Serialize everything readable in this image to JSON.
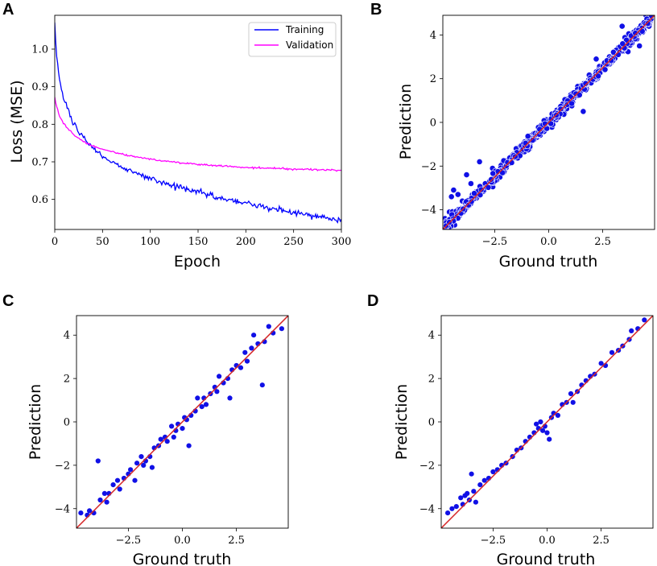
{
  "chart_data": [
    {
      "panel": "A",
      "type": "line",
      "xlabel": "Epoch",
      "ylabel": "Loss (MSE)",
      "xlim": [
        0,
        300
      ],
      "ylim": [
        0.52,
        1.09
      ],
      "xticks": [
        0,
        50,
        100,
        150,
        200,
        250,
        300
      ],
      "yticks": [
        0.6,
        0.7,
        0.8,
        0.9,
        1.0
      ],
      "legend_position": "top-right",
      "series": [
        {
          "name": "Training",
          "color": "#0000ff",
          "x": [
            0,
            2,
            4,
            6,
            8,
            10,
            15,
            20,
            25,
            30,
            35,
            40,
            50,
            60,
            75,
            100,
            125,
            150,
            175,
            200,
            225,
            250,
            275,
            300
          ],
          "y": [
            1.07,
            0.98,
            0.94,
            0.91,
            0.885,
            0.865,
            0.83,
            0.8,
            0.78,
            0.762,
            0.748,
            0.735,
            0.716,
            0.7,
            0.68,
            0.655,
            0.635,
            0.62,
            0.603,
            0.59,
            0.576,
            0.565,
            0.553,
            0.542
          ]
        },
        {
          "name": "Validation",
          "color": "#ff00ff",
          "x": [
            0,
            2,
            4,
            6,
            8,
            10,
            15,
            20,
            25,
            30,
            40,
            50,
            75,
            100,
            125,
            150,
            200,
            250,
            300
          ],
          "y": [
            0.87,
            0.845,
            0.83,
            0.818,
            0.808,
            0.8,
            0.785,
            0.772,
            0.762,
            0.754,
            0.742,
            0.733,
            0.718,
            0.707,
            0.699,
            0.693,
            0.685,
            0.681,
            0.677
          ]
        }
      ]
    },
    {
      "panel": "B",
      "type": "scatter",
      "xlabel": "Ground truth",
      "ylabel": "Prediction",
      "xlim": [
        -4.9,
        4.9
      ],
      "ylim": [
        -4.9,
        4.9
      ],
      "xticks": [
        -2.5,
        0.0,
        2.5
      ],
      "xtick_labels": [
        "−2.5",
        "0.0",
        "2.5"
      ],
      "yticks": [
        -4,
        -2,
        0,
        2,
        4
      ],
      "ytick_labels": [
        "−4",
        "−2",
        "0",
        "2",
        "4"
      ],
      "point_color": "#1010e6",
      "line_color": "#d62728",
      "n_points": 700,
      "points": [
        {
          "x": -4.8,
          "y": -4.4
        },
        {
          "x": -4.6,
          "y": -4.1
        },
        {
          "x": -4.5,
          "y": -3.4
        },
        {
          "x": -4.4,
          "y": -3.1
        },
        {
          "x": -4.2,
          "y": -3.3
        },
        {
          "x": -4.0,
          "y": -3.6
        },
        {
          "x": -3.8,
          "y": -2.4
        },
        {
          "x": -3.6,
          "y": -2.8
        },
        {
          "x": -3.2,
          "y": -1.8
        },
        {
          "x": -2.6,
          "y": -2.1
        },
        {
          "x": 1.6,
          "y": 0.5
        },
        {
          "x": 2.2,
          "y": 2.9
        },
        {
          "x": 3.4,
          "y": 4.4
        },
        {
          "x": 4.2,
          "y": 3.5
        },
        {
          "x": 4.5,
          "y": 4.9
        }
      ]
    },
    {
      "panel": "C",
      "type": "scatter",
      "xlabel": "Ground truth",
      "ylabel": "Prediction",
      "xlim": [
        -4.9,
        4.9
      ],
      "ylim": [
        -4.9,
        4.9
      ],
      "xticks": [
        -2.5,
        0.0,
        2.5
      ],
      "xtick_labels": [
        "−2.5",
        "0.0",
        "2.5"
      ],
      "yticks": [
        -4,
        -2,
        0,
        2,
        4
      ],
      "ytick_labels": [
        "−4",
        "−2",
        "0",
        "2",
        "4"
      ],
      "point_color": "#1010e6",
      "line_color": "#d62728",
      "points": [
        {
          "x": -4.7,
          "y": -4.2
        },
        {
          "x": -4.4,
          "y": -4.3
        },
        {
          "x": -4.3,
          "y": -4.1
        },
        {
          "x": -4.1,
          "y": -4.2
        },
        {
          "x": -3.9,
          "y": -1.8
        },
        {
          "x": -3.8,
          "y": -3.6
        },
        {
          "x": -3.6,
          "y": -3.3
        },
        {
          "x": -3.5,
          "y": -3.7
        },
        {
          "x": -3.4,
          "y": -3.3
        },
        {
          "x": -3.2,
          "y": -2.9
        },
        {
          "x": -3.0,
          "y": -2.7
        },
        {
          "x": -2.9,
          "y": -3.1
        },
        {
          "x": -2.7,
          "y": -2.6
        },
        {
          "x": -2.5,
          "y": -2.4
        },
        {
          "x": -2.4,
          "y": -2.2
        },
        {
          "x": -2.2,
          "y": -2.7
        },
        {
          "x": -2.1,
          "y": -1.9
        },
        {
          "x": -1.9,
          "y": -1.6
        },
        {
          "x": -1.8,
          "y": -2.0
        },
        {
          "x": -1.7,
          "y": -1.8
        },
        {
          "x": -1.5,
          "y": -1.6
        },
        {
          "x": -1.4,
          "y": -2.1
        },
        {
          "x": -1.3,
          "y": -1.2
        },
        {
          "x": -1.1,
          "y": -1.1
        },
        {
          "x": -1.0,
          "y": -0.8
        },
        {
          "x": -0.8,
          "y": -0.7
        },
        {
          "x": -0.7,
          "y": -0.9
        },
        {
          "x": -0.5,
          "y": -0.2
        },
        {
          "x": -0.4,
          "y": -0.7
        },
        {
          "x": -0.3,
          "y": -0.4
        },
        {
          "x": -0.2,
          "y": -0.1
        },
        {
          "x": 0.0,
          "y": -0.3
        },
        {
          "x": 0.1,
          "y": 0.2
        },
        {
          "x": 0.2,
          "y": 0.1
        },
        {
          "x": 0.3,
          "y": -1.1
        },
        {
          "x": 0.4,
          "y": 0.3
        },
        {
          "x": 0.6,
          "y": 0.5
        },
        {
          "x": 0.7,
          "y": 1.1
        },
        {
          "x": 0.9,
          "y": 0.7
        },
        {
          "x": 1.0,
          "y": 1.1
        },
        {
          "x": 1.1,
          "y": 0.8
        },
        {
          "x": 1.3,
          "y": 1.3
        },
        {
          "x": 1.5,
          "y": 1.6
        },
        {
          "x": 1.6,
          "y": 1.4
        },
        {
          "x": 1.7,
          "y": 2.1
        },
        {
          "x": 1.9,
          "y": 1.8
        },
        {
          "x": 2.1,
          "y": 2.0
        },
        {
          "x": 2.2,
          "y": 1.1
        },
        {
          "x": 2.3,
          "y": 2.4
        },
        {
          "x": 2.5,
          "y": 2.6
        },
        {
          "x": 2.7,
          "y": 2.5
        },
        {
          "x": 2.9,
          "y": 3.2
        },
        {
          "x": 3.0,
          "y": 2.8
        },
        {
          "x": 3.2,
          "y": 3.4
        },
        {
          "x": 3.3,
          "y": 4.0
        },
        {
          "x": 3.5,
          "y": 3.6
        },
        {
          "x": 3.7,
          "y": 1.7
        },
        {
          "x": 3.8,
          "y": 3.7
        },
        {
          "x": 4.0,
          "y": 4.4
        },
        {
          "x": 4.2,
          "y": 4.1
        },
        {
          "x": 4.6,
          "y": 4.3
        }
      ]
    },
    {
      "panel": "D",
      "type": "scatter",
      "xlabel": "Ground truth",
      "ylabel": "Prediction",
      "xlim": [
        -4.9,
        4.9
      ],
      "ylim": [
        -4.9,
        4.9
      ],
      "xticks": [
        -2.5,
        0.0,
        2.5
      ],
      "xtick_labels": [
        "−2.5",
        "0.0",
        "2.5"
      ],
      "yticks": [
        -4,
        -2,
        0,
        2,
        4
      ],
      "ytick_labels": [
        "−4",
        "−2",
        "0",
        "2",
        "4"
      ],
      "point_color": "#1010e6",
      "line_color": "#d62728",
      "points": [
        {
          "x": -4.6,
          "y": -4.2
        },
        {
          "x": -4.4,
          "y": -4.0
        },
        {
          "x": -4.2,
          "y": -3.9
        },
        {
          "x": -4.0,
          "y": -3.5
        },
        {
          "x": -3.9,
          "y": -3.8
        },
        {
          "x": -3.8,
          "y": -3.4
        },
        {
          "x": -3.7,
          "y": -3.3
        },
        {
          "x": -3.6,
          "y": -3.6
        },
        {
          "x": -3.5,
          "y": -2.4
        },
        {
          "x": -3.4,
          "y": -3.2
        },
        {
          "x": -3.3,
          "y": -3.7
        },
        {
          "x": -3.1,
          "y": -2.9
        },
        {
          "x": -2.9,
          "y": -2.7
        },
        {
          "x": -2.7,
          "y": -2.6
        },
        {
          "x": -2.5,
          "y": -2.3
        },
        {
          "x": -2.3,
          "y": -2.2
        },
        {
          "x": -2.1,
          "y": -2.0
        },
        {
          "x": -1.9,
          "y": -1.9
        },
        {
          "x": -1.6,
          "y": -1.6
        },
        {
          "x": -1.4,
          "y": -1.3
        },
        {
          "x": -1.2,
          "y": -1.2
        },
        {
          "x": -1.0,
          "y": -0.9
        },
        {
          "x": -0.8,
          "y": -0.7
        },
        {
          "x": -0.6,
          "y": -0.5
        },
        {
          "x": -0.5,
          "y": -0.1
        },
        {
          "x": -0.4,
          "y": -0.3
        },
        {
          "x": -0.3,
          "y": 0.0
        },
        {
          "x": -0.2,
          "y": -0.4
        },
        {
          "x": -0.1,
          "y": -0.2
        },
        {
          "x": 0.0,
          "y": -0.5
        },
        {
          "x": 0.1,
          "y": -0.8
        },
        {
          "x": 0.2,
          "y": 0.2
        },
        {
          "x": 0.3,
          "y": 0.4
        },
        {
          "x": 0.5,
          "y": 0.3
        },
        {
          "x": 0.7,
          "y": 0.8
        },
        {
          "x": 0.9,
          "y": 0.9
        },
        {
          "x": 1.1,
          "y": 1.3
        },
        {
          "x": 1.2,
          "y": 0.9
        },
        {
          "x": 1.4,
          "y": 1.4
        },
        {
          "x": 1.6,
          "y": 1.7
        },
        {
          "x": 1.8,
          "y": 1.9
        },
        {
          "x": 2.0,
          "y": 2.1
        },
        {
          "x": 2.2,
          "y": 2.2
        },
        {
          "x": 2.5,
          "y": 2.7
        },
        {
          "x": 2.7,
          "y": 2.6
        },
        {
          "x": 3.0,
          "y": 3.2
        },
        {
          "x": 3.3,
          "y": 3.3
        },
        {
          "x": 3.5,
          "y": 3.5
        },
        {
          "x": 3.8,
          "y": 3.8
        },
        {
          "x": 3.9,
          "y": 4.2
        },
        {
          "x": 4.2,
          "y": 4.3
        },
        {
          "x": 4.5,
          "y": 4.7
        }
      ]
    }
  ]
}
